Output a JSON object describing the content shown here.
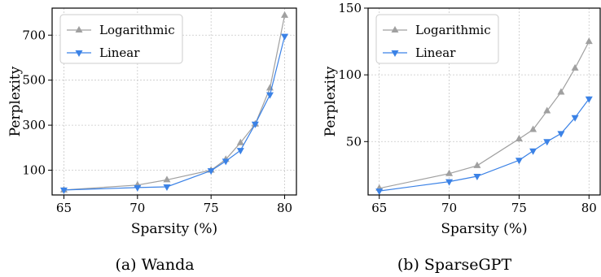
{
  "chart_data": [
    {
      "type": "line",
      "caption": "(a) Wanda",
      "xlabel": "Sparsity (%)",
      "ylabel": "Perplexity",
      "xlim": [
        64.2,
        80.8
      ],
      "ylim": [
        -10,
        820
      ],
      "xticks": [
        65,
        70,
        75,
        80
      ],
      "yticks": [
        100,
        300,
        500,
        700
      ],
      "grid": true,
      "legend_position": "top-left",
      "series": [
        {
          "name": "Logarithmic",
          "color": "#a0a0a0",
          "marker": "triangle-up",
          "x": [
            65,
            70,
            72,
            75,
            76,
            77,
            78,
            79,
            80
          ],
          "y": [
            12,
            34,
            57,
            100,
            148,
            222,
            305,
            465,
            788
          ]
        },
        {
          "name": "Linear",
          "color": "#3b82e6",
          "marker": "triangle-down",
          "x": [
            65,
            70,
            72,
            75,
            76,
            77,
            78,
            79,
            80
          ],
          "y": [
            12,
            23,
            26,
            98,
            140,
            188,
            305,
            435,
            695
          ]
        }
      ]
    },
    {
      "type": "line",
      "caption": "(b) SparseGPT",
      "xlabel": "Sparsity (%)",
      "ylabel": "Perplexity",
      "xlim": [
        64.2,
        80.8
      ],
      "ylim": [
        10,
        150
      ],
      "xticks": [
        65,
        70,
        75,
        80
      ],
      "yticks": [
        50,
        100,
        150
      ],
      "grid": true,
      "legend_position": "top-left",
      "series": [
        {
          "name": "Logarithmic",
          "color": "#a0a0a0",
          "marker": "triangle-up",
          "x": [
            65,
            70,
            72,
            75,
            76,
            77,
            78,
            79,
            80
          ],
          "y": [
            15,
            26,
            32,
            52,
            59,
            73,
            87,
            105,
            125
          ]
        },
        {
          "name": "Linear",
          "color": "#3b82e6",
          "marker": "triangle-down",
          "x": [
            65,
            70,
            72,
            75,
            76,
            77,
            78,
            79,
            80
          ],
          "y": [
            13,
            20,
            24,
            36,
            43,
            50,
            56,
            68,
            82
          ]
        }
      ]
    }
  ]
}
